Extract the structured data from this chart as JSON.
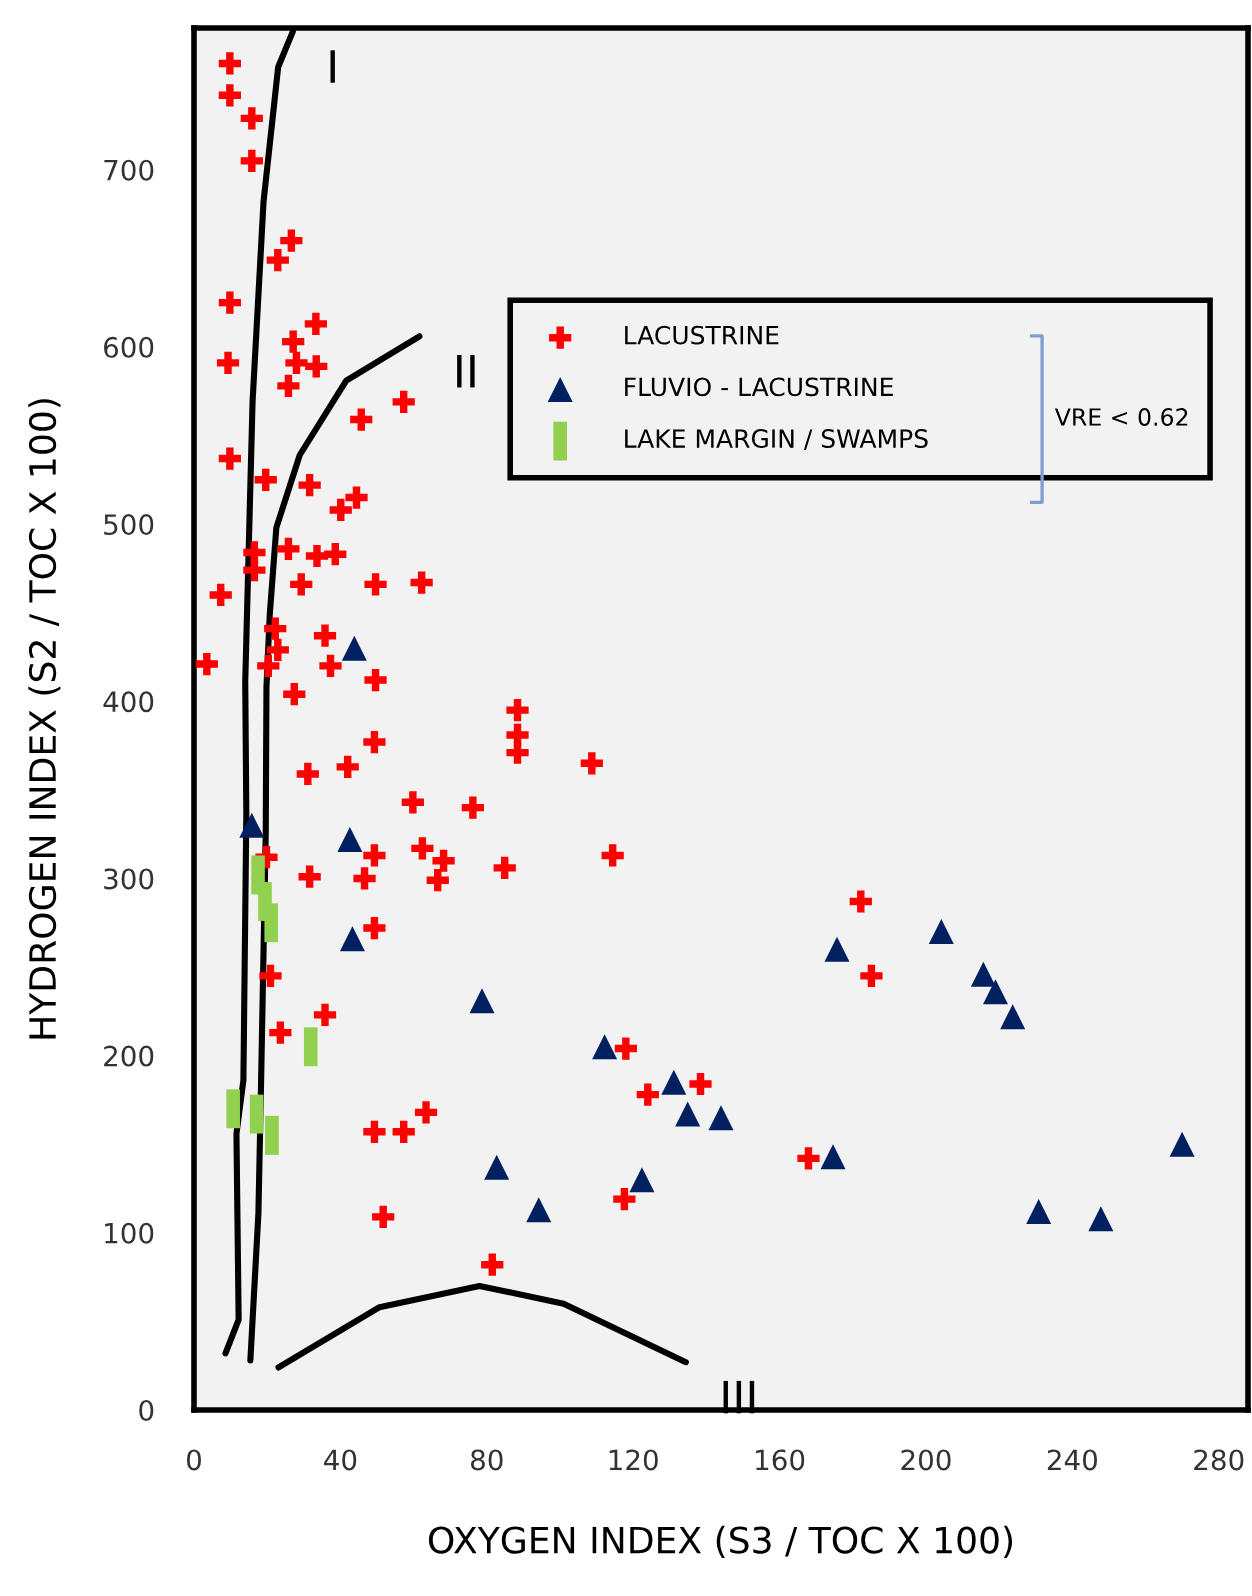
{
  "chart_data": {
    "type": "scatter",
    "xlabel": "OXYGEN INDEX (S3 / TOC X 100)",
    "ylabel": "HYDROGEN INDEX (S2 / TOC X 100)",
    "xlim": [
      0,
      288
    ],
    "ylim": [
      0,
      780
    ],
    "xticks": [
      0,
      40,
      80,
      120,
      160,
      200,
      240,
      280
    ],
    "yticks": [
      0,
      100,
      200,
      300,
      400,
      500,
      600,
      700
    ],
    "grid": false,
    "legend": "top right",
    "annotations": [
      "I",
      "II",
      "III",
      "VRE < 0.62"
    ],
    "series": [
      {
        "name": "LACUSTRINE",
        "color": "#ff0000",
        "marker": "cross",
        "x": [
          9.8,
          9.8,
          15.8,
          15.8,
          26.6,
          22.9,
          9.8,
          33.3,
          27.1,
          28.0,
          33.4,
          9.3,
          25.8,
          57.3,
          45.7,
          9.8,
          19.6,
          31.6,
          44.4,
          40.1,
          16.5,
          25.8,
          33.6,
          38.6,
          16.5,
          29.3,
          49.6,
          62.2,
          7.3,
          22.2,
          35.8,
          22.9,
          3.5,
          20.3,
          37.3,
          49.6,
          27.4,
          88.4,
          88.4,
          88.4,
          49.3,
          31.1,
          42.0,
          59.8,
          76.2,
          19.8,
          49.3,
          62.4,
          68.2,
          84.9,
          31.6,
          46.6,
          66.6,
          49.3,
          20.9,
          35.8,
          23.6,
          63.4,
          49.3,
          57.3,
          51.7,
          81.5,
          108.7,
          114.4,
          182.2,
          185.1,
          118.0,
          138.4,
          124.0,
          167.9,
          117.6
        ],
        "values": [
          760,
          742,
          729,
          705,
          660,
          649,
          625,
          613,
          603,
          591,
          589,
          591,
          578,
          569,
          559,
          537,
          525,
          522,
          515,
          508,
          484,
          486,
          482,
          483,
          474,
          466,
          466,
          467,
          460,
          441,
          437,
          429,
          421,
          420,
          420,
          412,
          404,
          395,
          381,
          371,
          377,
          359,
          363,
          343,
          340,
          312,
          313,
          317,
          310,
          306,
          301,
          300,
          299,
          272,
          245,
          223,
          213,
          168,
          157,
          157,
          109,
          82,
          365,
          313,
          287,
          245,
          204,
          184,
          178,
          142,
          119
        ]
      },
      {
        "name": "FLUVIO - LACUSTRINE",
        "color": "#002060",
        "marker": "triangle",
        "x": [
          43.8,
          15.8,
          42.6,
          43.3,
          78.7,
          82.7,
          94.2,
          175.7,
          204.2,
          215.7,
          219.0,
          223.7,
          112.2,
          131.1,
          134.9,
          144.0,
          174.6,
          270.0,
          122.4,
          230.8,
          247.8
        ],
        "values": [
          430,
          330,
          322,
          266,
          231,
          137,
          113,
          260,
          270,
          246,
          236,
          222,
          205,
          185,
          167,
          165,
          143,
          150,
          130,
          112,
          108
        ]
      },
      {
        "name": "LAKE MARGIN / SWAMPS",
        "color": "#92d050",
        "marker": "square",
        "x": [
          17.5,
          19.4,
          21.1,
          31.9,
          10.7,
          17.1,
          21.3
        ],
        "values": [
          302,
          287,
          275,
          205,
          170,
          167,
          155
        ]
      },
      {
        "type": "line",
        "color": "#000000",
        "marker": "none",
        "x": [
          27,
          23,
          19,
          16,
          15,
          14,
          14.3,
          13.5,
          11.6,
          12.2,
          8.6
        ],
        "values": [
          778,
          758,
          682,
          569,
          490,
          411,
          336,
          186,
          156,
          51,
          32
        ]
      },
      {
        "type": "line",
        "color": "#000000",
        "marker": "none",
        "x": [
          61.6,
          41.6,
          28.9,
          22.5,
          20.7,
          19.8,
          19.6,
          18.3,
          17.6,
          15.4
        ],
        "values": [
          606,
          581,
          539,
          498,
          449,
          408,
          325,
          182,
          111,
          28
        ]
      },
      {
        "type": "line",
        "color": "#000000",
        "marker": "none",
        "x": [
          23.1,
          50.7,
          78,
          101,
          134.4
        ],
        "values": [
          24,
          58,
          70,
          60,
          27
        ]
      }
    ]
  }
}
